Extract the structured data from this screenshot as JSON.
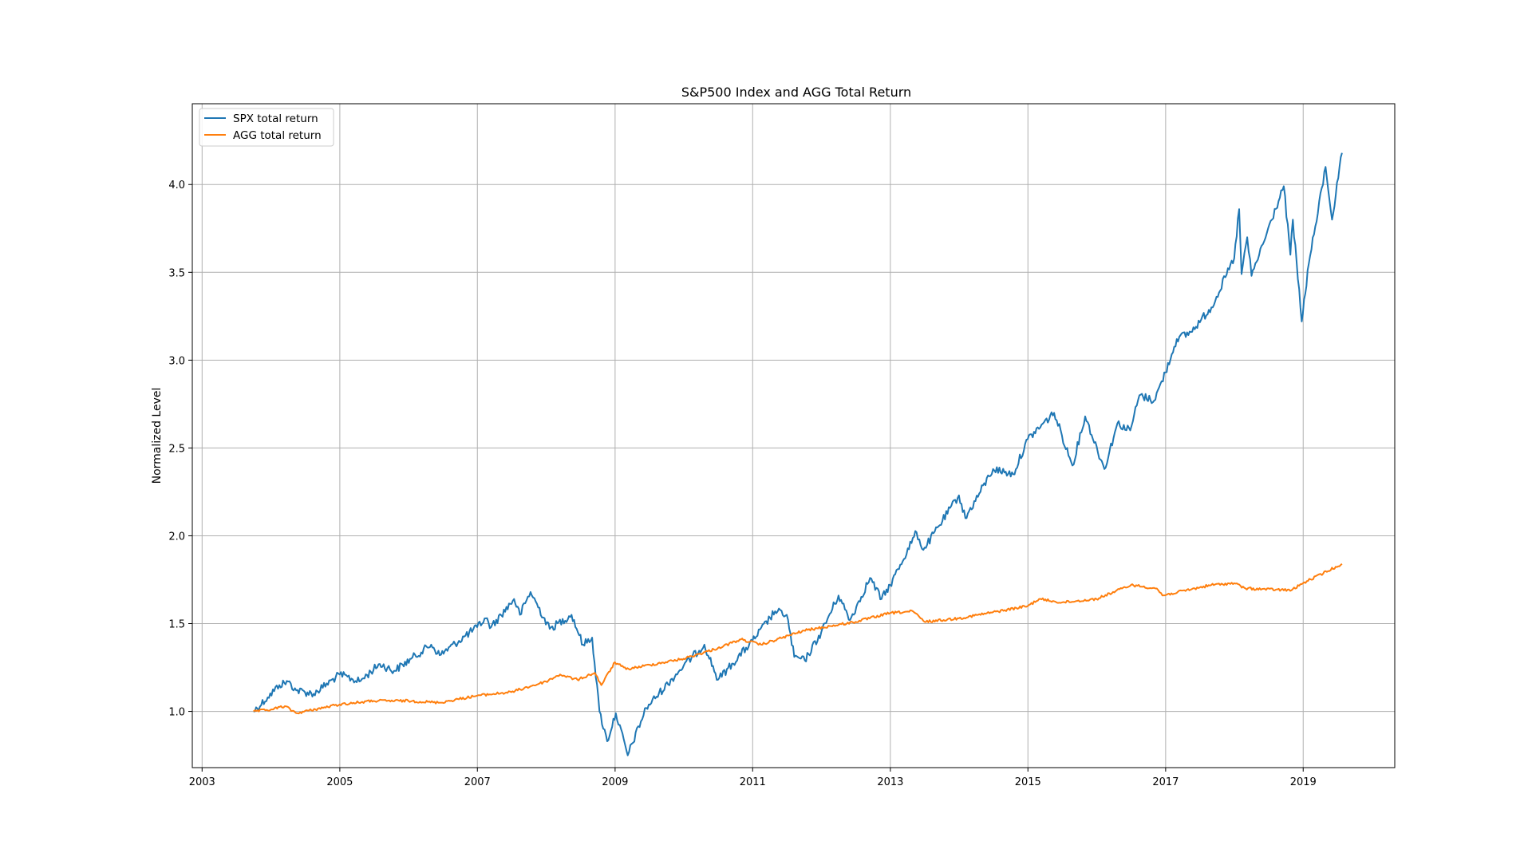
{
  "chart_data": {
    "type": "line",
    "title": "S&P500 Index and AGG Total Return",
    "xlabel": "",
    "ylabel": "Normalized Level",
    "xlim": [
      "2002-11-10",
      "2020-05-01"
    ],
    "ylim": [
      0.68,
      4.46
    ],
    "x_ticks": [
      "2003",
      "2005",
      "2007",
      "2009",
      "2011",
      "2013",
      "2015",
      "2017",
      "2019"
    ],
    "y_ticks": [
      "1.0",
      "1.5",
      "2.0",
      "2.5",
      "3.0",
      "3.5",
      "4.0"
    ],
    "grid": true,
    "legend_position": "upper-left",
    "series": [
      {
        "name": "SPX total return",
        "color": "#1f77b4",
        "points": [
          [
            "2003-10-01",
            1.0
          ],
          [
            "2003-12-15",
            1.08
          ],
          [
            "2004-02-15",
            1.15
          ],
          [
            "2004-04-01",
            1.17
          ],
          [
            "2004-05-15",
            1.12
          ],
          [
            "2004-08-15",
            1.1
          ],
          [
            "2004-12-31",
            1.21
          ],
          [
            "2005-04-15",
            1.17
          ],
          [
            "2005-08-01",
            1.27
          ],
          [
            "2005-10-15",
            1.23
          ],
          [
            "2006-01-15",
            1.3
          ],
          [
            "2006-05-01",
            1.38
          ],
          [
            "2006-06-15",
            1.32
          ],
          [
            "2006-12-31",
            1.48
          ],
          [
            "2007-02-15",
            1.53
          ],
          [
            "2007-03-15",
            1.48
          ],
          [
            "2007-07-15",
            1.64
          ],
          [
            "2007-08-15",
            1.55
          ],
          [
            "2007-10-10",
            1.68
          ],
          [
            "2008-01-20",
            1.47
          ],
          [
            "2008-05-15",
            1.55
          ],
          [
            "2008-07-15",
            1.38
          ],
          [
            "2008-09-01",
            1.42
          ],
          [
            "2008-10-10",
            1.0
          ],
          [
            "2008-11-20",
            0.83
          ],
          [
            "2009-01-05",
            0.99
          ],
          [
            "2009-03-09",
            0.75
          ],
          [
            "2009-06-15",
            1.02
          ],
          [
            "2009-12-31",
            1.26
          ],
          [
            "2010-04-20",
            1.38
          ],
          [
            "2010-07-01",
            1.18
          ],
          [
            "2010-12-31",
            1.4
          ],
          [
            "2011-04-30",
            1.57
          ],
          [
            "2011-07-01",
            1.55
          ],
          [
            "2011-08-10",
            1.31
          ],
          [
            "2011-10-05",
            1.29
          ],
          [
            "2011-12-31",
            1.45
          ],
          [
            "2012-04-01",
            1.66
          ],
          [
            "2012-06-01",
            1.52
          ],
          [
            "2012-09-15",
            1.76
          ],
          [
            "2012-11-15",
            1.64
          ],
          [
            "2012-12-31",
            1.72
          ],
          [
            "2013-05-20",
            2.02
          ],
          [
            "2013-06-25",
            1.92
          ],
          [
            "2013-12-31",
            2.23
          ],
          [
            "2014-02-03",
            2.1
          ],
          [
            "2014-06-30",
            2.38
          ],
          [
            "2014-10-15",
            2.35
          ],
          [
            "2014-12-31",
            2.55
          ],
          [
            "2015-05-20",
            2.7
          ],
          [
            "2015-08-25",
            2.4
          ],
          [
            "2015-11-01",
            2.68
          ],
          [
            "2016-02-11",
            2.38
          ],
          [
            "2016-04-20",
            2.64
          ],
          [
            "2016-06-27",
            2.6
          ],
          [
            "2016-08-15",
            2.8
          ],
          [
            "2016-11-01",
            2.77
          ],
          [
            "2016-12-31",
            2.93
          ],
          [
            "2017-03-01",
            3.12
          ],
          [
            "2017-05-15",
            3.16
          ],
          [
            "2017-09-01",
            3.3
          ],
          [
            "2017-12-31",
            3.58
          ],
          [
            "2018-01-26",
            3.86
          ],
          [
            "2018-02-08",
            3.49
          ],
          [
            "2018-03-10",
            3.7
          ],
          [
            "2018-04-02",
            3.48
          ],
          [
            "2018-06-01",
            3.66
          ],
          [
            "2018-09-20",
            3.99
          ],
          [
            "2018-10-25",
            3.6
          ],
          [
            "2018-11-07",
            3.8
          ],
          [
            "2018-12-24",
            3.22
          ],
          [
            "2019-01-31",
            3.55
          ],
          [
            "2019-04-30",
            4.1
          ],
          [
            "2019-06-03",
            3.8
          ],
          [
            "2019-07-26",
            4.18
          ]
        ]
      },
      {
        "name": "AGG total return",
        "color": "#ff7f0e",
        "points": [
          [
            "2003-10-01",
            1.0
          ],
          [
            "2003-12-31",
            1.01
          ],
          [
            "2004-03-15",
            1.03
          ],
          [
            "2004-05-15",
            0.99
          ],
          [
            "2004-12-31",
            1.04
          ],
          [
            "2005-06-30",
            1.06
          ],
          [
            "2005-12-31",
            1.06
          ],
          [
            "2006-06-15",
            1.05
          ],
          [
            "2006-12-31",
            1.09
          ],
          [
            "2007-06-30",
            1.11
          ],
          [
            "2007-12-31",
            1.17
          ],
          [
            "2008-03-15",
            1.21
          ],
          [
            "2008-06-15",
            1.18
          ],
          [
            "2008-09-15",
            1.22
          ],
          [
            "2008-10-20",
            1.15
          ],
          [
            "2008-12-31",
            1.28
          ],
          [
            "2009-03-01",
            1.24
          ],
          [
            "2009-12-31",
            1.3
          ],
          [
            "2010-06-30",
            1.36
          ],
          [
            "2010-10-31",
            1.41
          ],
          [
            "2011-02-15",
            1.38
          ],
          [
            "2011-09-30",
            1.46
          ],
          [
            "2012-06-30",
            1.51
          ],
          [
            "2012-12-31",
            1.56
          ],
          [
            "2013-05-01",
            1.57
          ],
          [
            "2013-07-01",
            1.51
          ],
          [
            "2013-12-31",
            1.53
          ],
          [
            "2014-12-31",
            1.6
          ],
          [
            "2015-03-01",
            1.64
          ],
          [
            "2015-06-30",
            1.62
          ],
          [
            "2015-12-31",
            1.64
          ],
          [
            "2016-07-01",
            1.72
          ],
          [
            "2016-11-15",
            1.7
          ],
          [
            "2016-12-15",
            1.66
          ],
          [
            "2017-08-31",
            1.72
          ],
          [
            "2017-12-31",
            1.73
          ],
          [
            "2018-03-01",
            1.7
          ],
          [
            "2018-10-31",
            1.69
          ],
          [
            "2018-12-31",
            1.73
          ],
          [
            "2019-07-26",
            1.84
          ]
        ]
      }
    ]
  }
}
